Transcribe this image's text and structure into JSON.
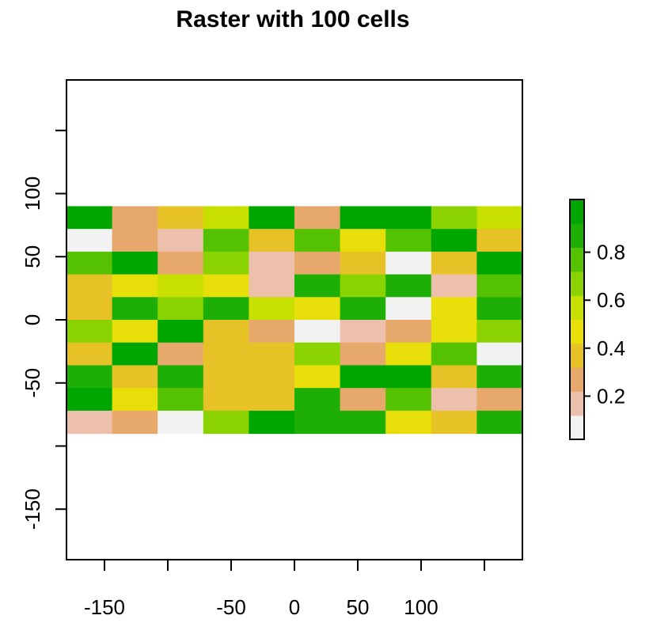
{
  "chart_data": {
    "type": "heatmap",
    "title": "Raster with 100 cells",
    "xlabel": "",
    "ylabel": "",
    "xlim": [
      -180,
      180
    ],
    "ylim": [
      -190,
      190
    ],
    "x_ticks": [
      -150,
      -100,
      -50,
      0,
      50,
      100,
      150
    ],
    "x_tick_labels": [
      "-150",
      "",
      "-50",
      "0",
      "50",
      "100",
      ""
    ],
    "y_ticks": [
      -150,
      -100,
      -50,
      0,
      50,
      100,
      150
    ],
    "y_tick_labels": [
      "-150",
      "",
      "-50",
      "0",
      "50",
      "100",
      ""
    ],
    "raster_extent": {
      "xmin": -180,
      "xmax": 180,
      "ymin": -90,
      "ymax": 90
    },
    "nrows": 10,
    "ncols": 10,
    "values": [
      [
        0.9,
        0.25,
        0.35,
        0.55,
        0.9,
        0.2,
        0.9,
        0.92,
        0.65,
        0.55
      ],
      [
        0.08,
        0.22,
        0.18,
        0.7,
        0.35,
        0.75,
        0.45,
        0.7,
        1.0,
        0.35
      ],
      [
        0.78,
        0.95,
        0.22,
        0.65,
        0.12,
        0.28,
        0.35,
        0.0,
        0.35,
        0.9
      ],
      [
        0.32,
        0.42,
        0.55,
        0.45,
        0.18,
        0.88,
        0.68,
        0.85,
        0.12,
        0.78
      ],
      [
        0.38,
        0.85,
        0.65,
        0.8,
        0.5,
        0.45,
        0.82,
        0.05,
        0.45,
        0.8
      ],
      [
        0.65,
        0.45,
        0.9,
        0.38,
        0.25,
        0.08,
        0.12,
        0.28,
        0.48,
        0.62
      ],
      [
        0.38,
        0.95,
        0.28,
        0.38,
        0.3,
        0.62,
        0.25,
        0.42,
        0.75,
        0.08
      ],
      [
        0.88,
        0.3,
        0.85,
        0.35,
        0.3,
        0.45,
        0.92,
        0.9,
        0.35,
        0.8
      ],
      [
        0.98,
        0.4,
        0.7,
        0.35,
        0.3,
        0.8,
        0.22,
        0.7,
        0.12,
        0.25
      ],
      [
        0.15,
        0.25,
        0.05,
        0.62,
        0.92,
        0.85,
        0.85,
        0.4,
        0.38,
        0.88
      ]
    ],
    "value_range": [
      0,
      1
    ],
    "legend": {
      "placement": "right",
      "ticks": [
        0.2,
        0.4,
        0.6,
        0.8
      ],
      "tick_labels": [
        "0.2",
        "0.4",
        "0.6",
        "0.8"
      ]
    },
    "colors": {
      "palette": [
        "#F2F2F2",
        "#EDC0AE",
        "#E7A96B",
        "#E6C227",
        "#E8DE0A",
        "#C8E000",
        "#8AD200",
        "#54C200",
        "#1EAF06",
        "#00A600"
      ],
      "axis": "#000000",
      "background": "#ffffff"
    }
  }
}
